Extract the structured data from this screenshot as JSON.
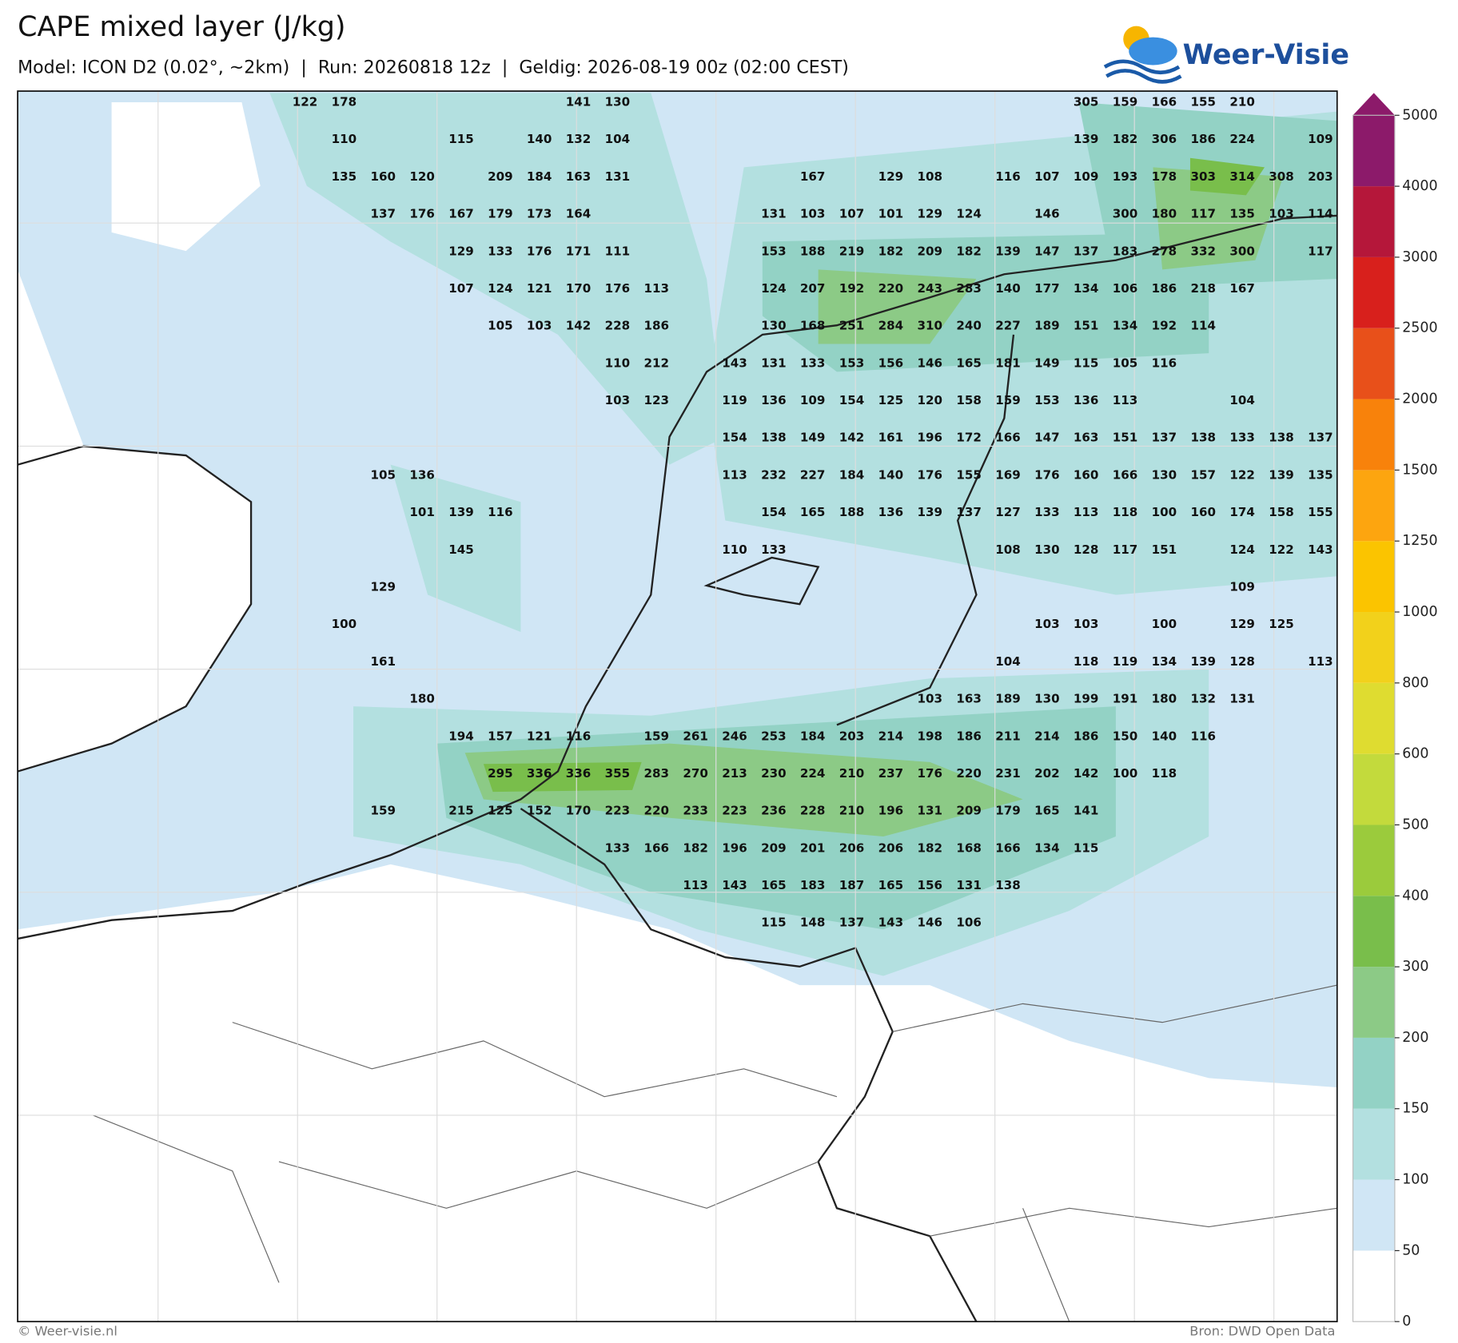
{
  "header": {
    "title": "CAPE mixed layer (J/kg)",
    "subtitle": "Model: ICON D2 (0.02°, ~2km)  |  Run: 20260818 12z  |  Geldig: 2026-08-19 00z (02:00 CEST)"
  },
  "logo": "Weer-Visie",
  "colorbar": {
    "ticks": [
      0,
      50,
      100,
      150,
      200,
      300,
      400,
      500,
      600,
      800,
      1000,
      1250,
      1500,
      2000,
      2500,
      3000,
      4000,
      5000
    ],
    "colors": [
      "#ffffff",
      "#d0e6f5",
      "#b3e0e0",
      "#93d2c5",
      "#8cca86",
      "#79be4b",
      "#9bcb3c",
      "#c3da3c",
      "#dfdc30",
      "#f2d11b",
      "#fbc400",
      "#fda50f",
      "#f8820b",
      "#e8501a",
      "#d8201c",
      "#b5173a",
      "#8c1a6a"
    ]
  },
  "map_labels": {
    "rows": [
      [
        122,
        178,
        null,
        null,
        null,
        null,
        null,
        141,
        130,
        null,
        null,
        null,
        null,
        null,
        null,
        null,
        null,
        null,
        null,
        null,
        305,
        159,
        166,
        155,
        210,
        null,
        null
      ],
      [
        null,
        110,
        null,
        null,
        115,
        null,
        140,
        132,
        104,
        null,
        null,
        null,
        null,
        null,
        null,
        null,
        null,
        null,
        null,
        null,
        139,
        182,
        306,
        186,
        224,
        null,
        109
      ],
      [
        null,
        135,
        160,
        120,
        null,
        209,
        184,
        163,
        131,
        null,
        null,
        null,
        null,
        167,
        null,
        129,
        108,
        null,
        116,
        107,
        109,
        193,
        178,
        303,
        314,
        308,
        203
      ],
      [
        null,
        null,
        137,
        176,
        167,
        179,
        173,
        164,
        null,
        null,
        null,
        null,
        131,
        103,
        107,
        101,
        129,
        124,
        null,
        146,
        null,
        300,
        180,
        117,
        135,
        103,
        114
      ],
      [
        null,
        null,
        null,
        null,
        129,
        133,
        176,
        171,
        111,
        null,
        null,
        null,
        153,
        188,
        219,
        182,
        209,
        182,
        139,
        147,
        137,
        183,
        278,
        332,
        300,
        null,
        117
      ],
      [
        null,
        null,
        null,
        null,
        107,
        124,
        121,
        170,
        176,
        113,
        null,
        null,
        124,
        207,
        192,
        220,
        243,
        283,
        140,
        177,
        134,
        106,
        186,
        218,
        167,
        null,
        null
      ],
      [
        null,
        null,
        null,
        null,
        null,
        105,
        103,
        142,
        228,
        186,
        null,
        null,
        130,
        168,
        251,
        284,
        310,
        240,
        227,
        189,
        151,
        134,
        192,
        114,
        null,
        null,
        null
      ],
      [
        null,
        null,
        null,
        null,
        null,
        null,
        null,
        null,
        110,
        212,
        null,
        143,
        131,
        133,
        153,
        156,
        146,
        165,
        181,
        149,
        115,
        105,
        116,
        null,
        null,
        null,
        null
      ],
      [
        null,
        null,
        null,
        null,
        null,
        null,
        null,
        null,
        103,
        123,
        null,
        119,
        136,
        109,
        154,
        125,
        120,
        158,
        159,
        153,
        136,
        113,
        null,
        null,
        104,
        null,
        null
      ],
      [
        null,
        null,
        null,
        null,
        null,
        null,
        null,
        null,
        null,
        null,
        null,
        154,
        138,
        149,
        142,
        161,
        196,
        172,
        166,
        147,
        163,
        151,
        137,
        138,
        133,
        138,
        137
      ],
      [
        null,
        null,
        105,
        136,
        null,
        null,
        null,
        null,
        null,
        null,
        null,
        113,
        232,
        227,
        184,
        140,
        176,
        155,
        169,
        176,
        160,
        166,
        130,
        157,
        122,
        139,
        135
      ],
      [
        null,
        null,
        null,
        101,
        139,
        116,
        null,
        null,
        null,
        null,
        null,
        null,
        154,
        165,
        188,
        136,
        139,
        137,
        127,
        133,
        113,
        118,
        100,
        160,
        174,
        158,
        155
      ],
      [
        null,
        null,
        null,
        null,
        145,
        null,
        null,
        null,
        null,
        null,
        null,
        110,
        133,
        null,
        null,
        null,
        null,
        null,
        108,
        130,
        128,
        117,
        151,
        null,
        124,
        122,
        143
      ],
      [
        null,
        null,
        129,
        null,
        null,
        null,
        null,
        null,
        null,
        null,
        null,
        null,
        null,
        null,
        null,
        null,
        null,
        null,
        null,
        null,
        null,
        null,
        null,
        null,
        109,
        null,
        null
      ],
      [
        null,
        100,
        null,
        null,
        null,
        null,
        null,
        null,
        null,
        null,
        null,
        null,
        null,
        null,
        null,
        null,
        null,
        null,
        null,
        103,
        103,
        null,
        100,
        null,
        129,
        125,
        null
      ],
      [
        null,
        null,
        161,
        null,
        null,
        null,
        null,
        null,
        null,
        null,
        null,
        null,
        null,
        null,
        null,
        null,
        null,
        null,
        104,
        null,
        118,
        119,
        134,
        139,
        128,
        null,
        113
      ],
      [
        null,
        null,
        null,
        180,
        null,
        null,
        null,
        null,
        null,
        null,
        null,
        null,
        null,
        null,
        null,
        null,
        103,
        163,
        189,
        130,
        199,
        191,
        180,
        132,
        131,
        null,
        null
      ],
      [
        null,
        null,
        null,
        null,
        194,
        157,
        121,
        116,
        null,
        159,
        261,
        246,
        253,
        184,
        203,
        214,
        198,
        186,
        211,
        214,
        186,
        150,
        140,
        116,
        null,
        null,
        null
      ],
      [
        null,
        null,
        null,
        null,
        null,
        295,
        336,
        336,
        355,
        283,
        270,
        213,
        230,
        224,
        210,
        237,
        176,
        220,
        231,
        202,
        142,
        100,
        118,
        null,
        null,
        null,
        null
      ],
      [
        null,
        null,
        159,
        null,
        215,
        125,
        152,
        170,
        223,
        220,
        233,
        223,
        236,
        228,
        210,
        196,
        131,
        209,
        179,
        165,
        141,
        null,
        null,
        null,
        null,
        null,
        null
      ],
      [
        null,
        null,
        null,
        null,
        null,
        null,
        null,
        null,
        133,
        166,
        182,
        196,
        209,
        201,
        206,
        206,
        182,
        168,
        166,
        134,
        115,
        null,
        null,
        null,
        null,
        null,
        null
      ],
      [
        null,
        null,
        null,
        null,
        null,
        null,
        null,
        null,
        null,
        null,
        113,
        143,
        165,
        183,
        187,
        165,
        156,
        131,
        138,
        null,
        null,
        null,
        null,
        null,
        null,
        null,
        null
      ],
      [
        null,
        null,
        null,
        null,
        null,
        null,
        null,
        null,
        null,
        null,
        null,
        null,
        115,
        148,
        137,
        143,
        146,
        106,
        null,
        null,
        null,
        null,
        null,
        null,
        null,
        null,
        null
      ]
    ]
  },
  "footer": {
    "left": "© Weer-visie.nl",
    "right": "Bron: DWD Open Data"
  }
}
